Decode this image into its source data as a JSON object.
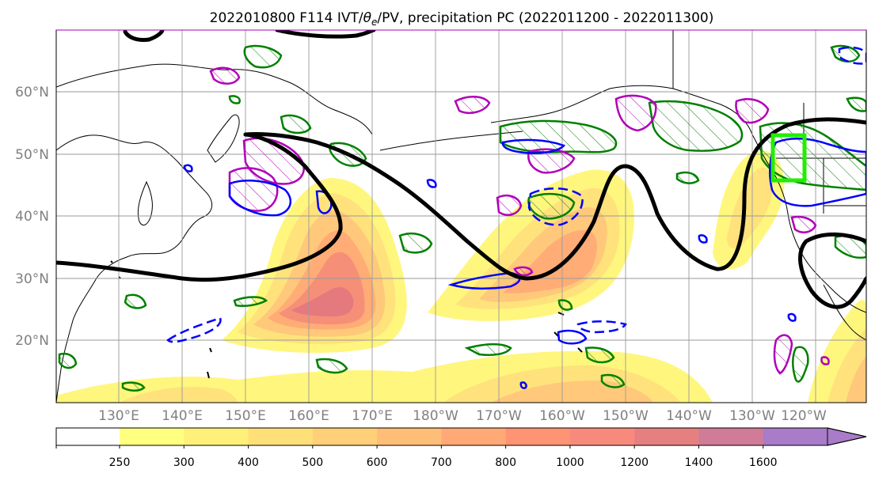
{
  "title": "2022010800 F114 IVT/θe/PV, precipitation PC (2022011200 - 2022011300)",
  "title_parts": {
    "prefix": "2022010800 F114 IVT/",
    "theta": "θ",
    "theta_sub": "e",
    "suffix": "/PV, precipitation PC (2022011200 - 2022011300)"
  },
  "lat_labels": [
    "60°N",
    "50°N",
    "40°N",
    "30°N",
    "20°N"
  ],
  "lon_labels": [
    "130°E",
    "140°E",
    "150°E",
    "160°E",
    "170°E",
    "180°W",
    "170°W",
    "160°W",
    "150°W",
    "140°W",
    "130°W",
    "120°W"
  ],
  "colorbar": {
    "ticks": [
      "250",
      "300",
      "400",
      "500",
      "600",
      "700",
      "800",
      "1000",
      "1200",
      "1400",
      "1600"
    ],
    "colors": [
      "#ffff80",
      "#fff07a",
      "#ffe078",
      "#ffd078",
      "#ffbe78",
      "#ffaa76",
      "#ff9474",
      "#f88a7c",
      "#e68080",
      "#d07c98",
      "#a87cc8"
    ]
  },
  "colors": {
    "ivt_fill": [
      "#fff67e",
      "#ffe27c",
      "#ffc87a",
      "#ffac76",
      "#f58f78",
      "#e5797e"
    ],
    "theta_e_contour": "#000000",
    "pv_positive": "#008000",
    "pv_blue": "#0000ff",
    "precip_magenta": "#b000b8",
    "target_box": "#22ee00"
  }
}
